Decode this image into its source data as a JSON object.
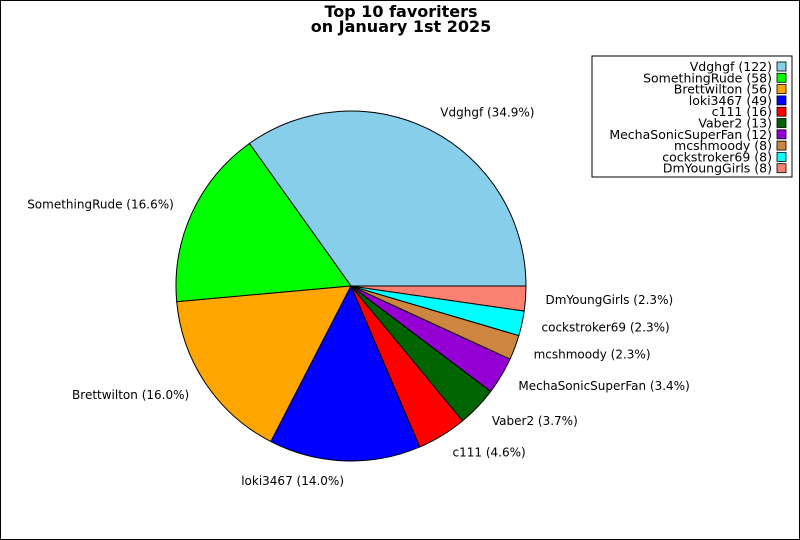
{
  "chart_data": {
    "type": "pie",
    "title": "Top 10 favoriters",
    "subtitle": "on January 1st 2025",
    "legend_position": "top-right",
    "slices": [
      {
        "name": "Vdghgf",
        "value": 122,
        "percent": "34.9%",
        "color": "#87ceeb"
      },
      {
        "name": "SomethingRude",
        "value": 58,
        "percent": "16.6%",
        "color": "#00ff00"
      },
      {
        "name": "Brettwilton",
        "value": 56,
        "percent": "16.0%",
        "color": "#ffa500"
      },
      {
        "name": "loki3467",
        "value": 49,
        "percent": "14.0%",
        "color": "#0000ff"
      },
      {
        "name": "c111",
        "value": 16,
        "percent": "4.6%",
        "color": "#ff0000"
      },
      {
        "name": "Vaber2",
        "value": 13,
        "percent": "3.7%",
        "color": "#006400"
      },
      {
        "name": "MechaSonicSuperFan",
        "value": 12,
        "percent": "3.4%",
        "color": "#9400d3"
      },
      {
        "name": "mcshmoody",
        "value": 8,
        "percent": "2.3%",
        "color": "#cd853f"
      },
      {
        "name": "cockstroker69",
        "value": 8,
        "percent": "2.3%",
        "color": "#00ffff"
      },
      {
        "name": "DmYoungGirls",
        "value": 8,
        "percent": "2.3%",
        "color": "#fa8072"
      }
    ]
  }
}
